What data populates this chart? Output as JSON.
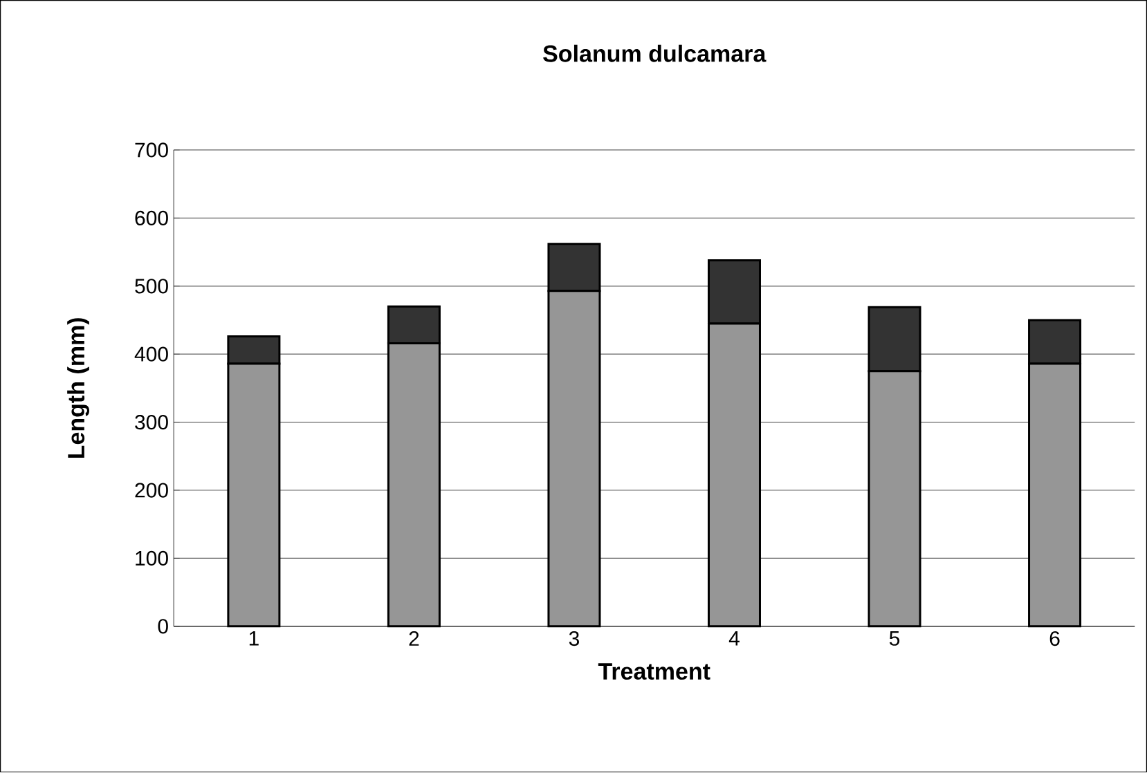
{
  "chart_data": {
    "type": "bar",
    "title": "Solanum dulcamara",
    "xlabel": "Treatment",
    "ylabel": "Length (mm)",
    "categories": [
      "1",
      "2",
      "3",
      "4",
      "5",
      "6"
    ],
    "stacked": true,
    "series": [
      {
        "color": "#969696",
        "values": [
          386,
          416,
          493,
          445,
          375,
          386
        ]
      },
      {
        "color": "#333333",
        "values": [
          40,
          54,
          69,
          93,
          94,
          64
        ]
      }
    ],
    "ylim": [
      0,
      700
    ],
    "yticks": [
      0,
      100,
      200,
      300,
      400,
      500,
      600,
      700
    ],
    "grid": "y"
  }
}
